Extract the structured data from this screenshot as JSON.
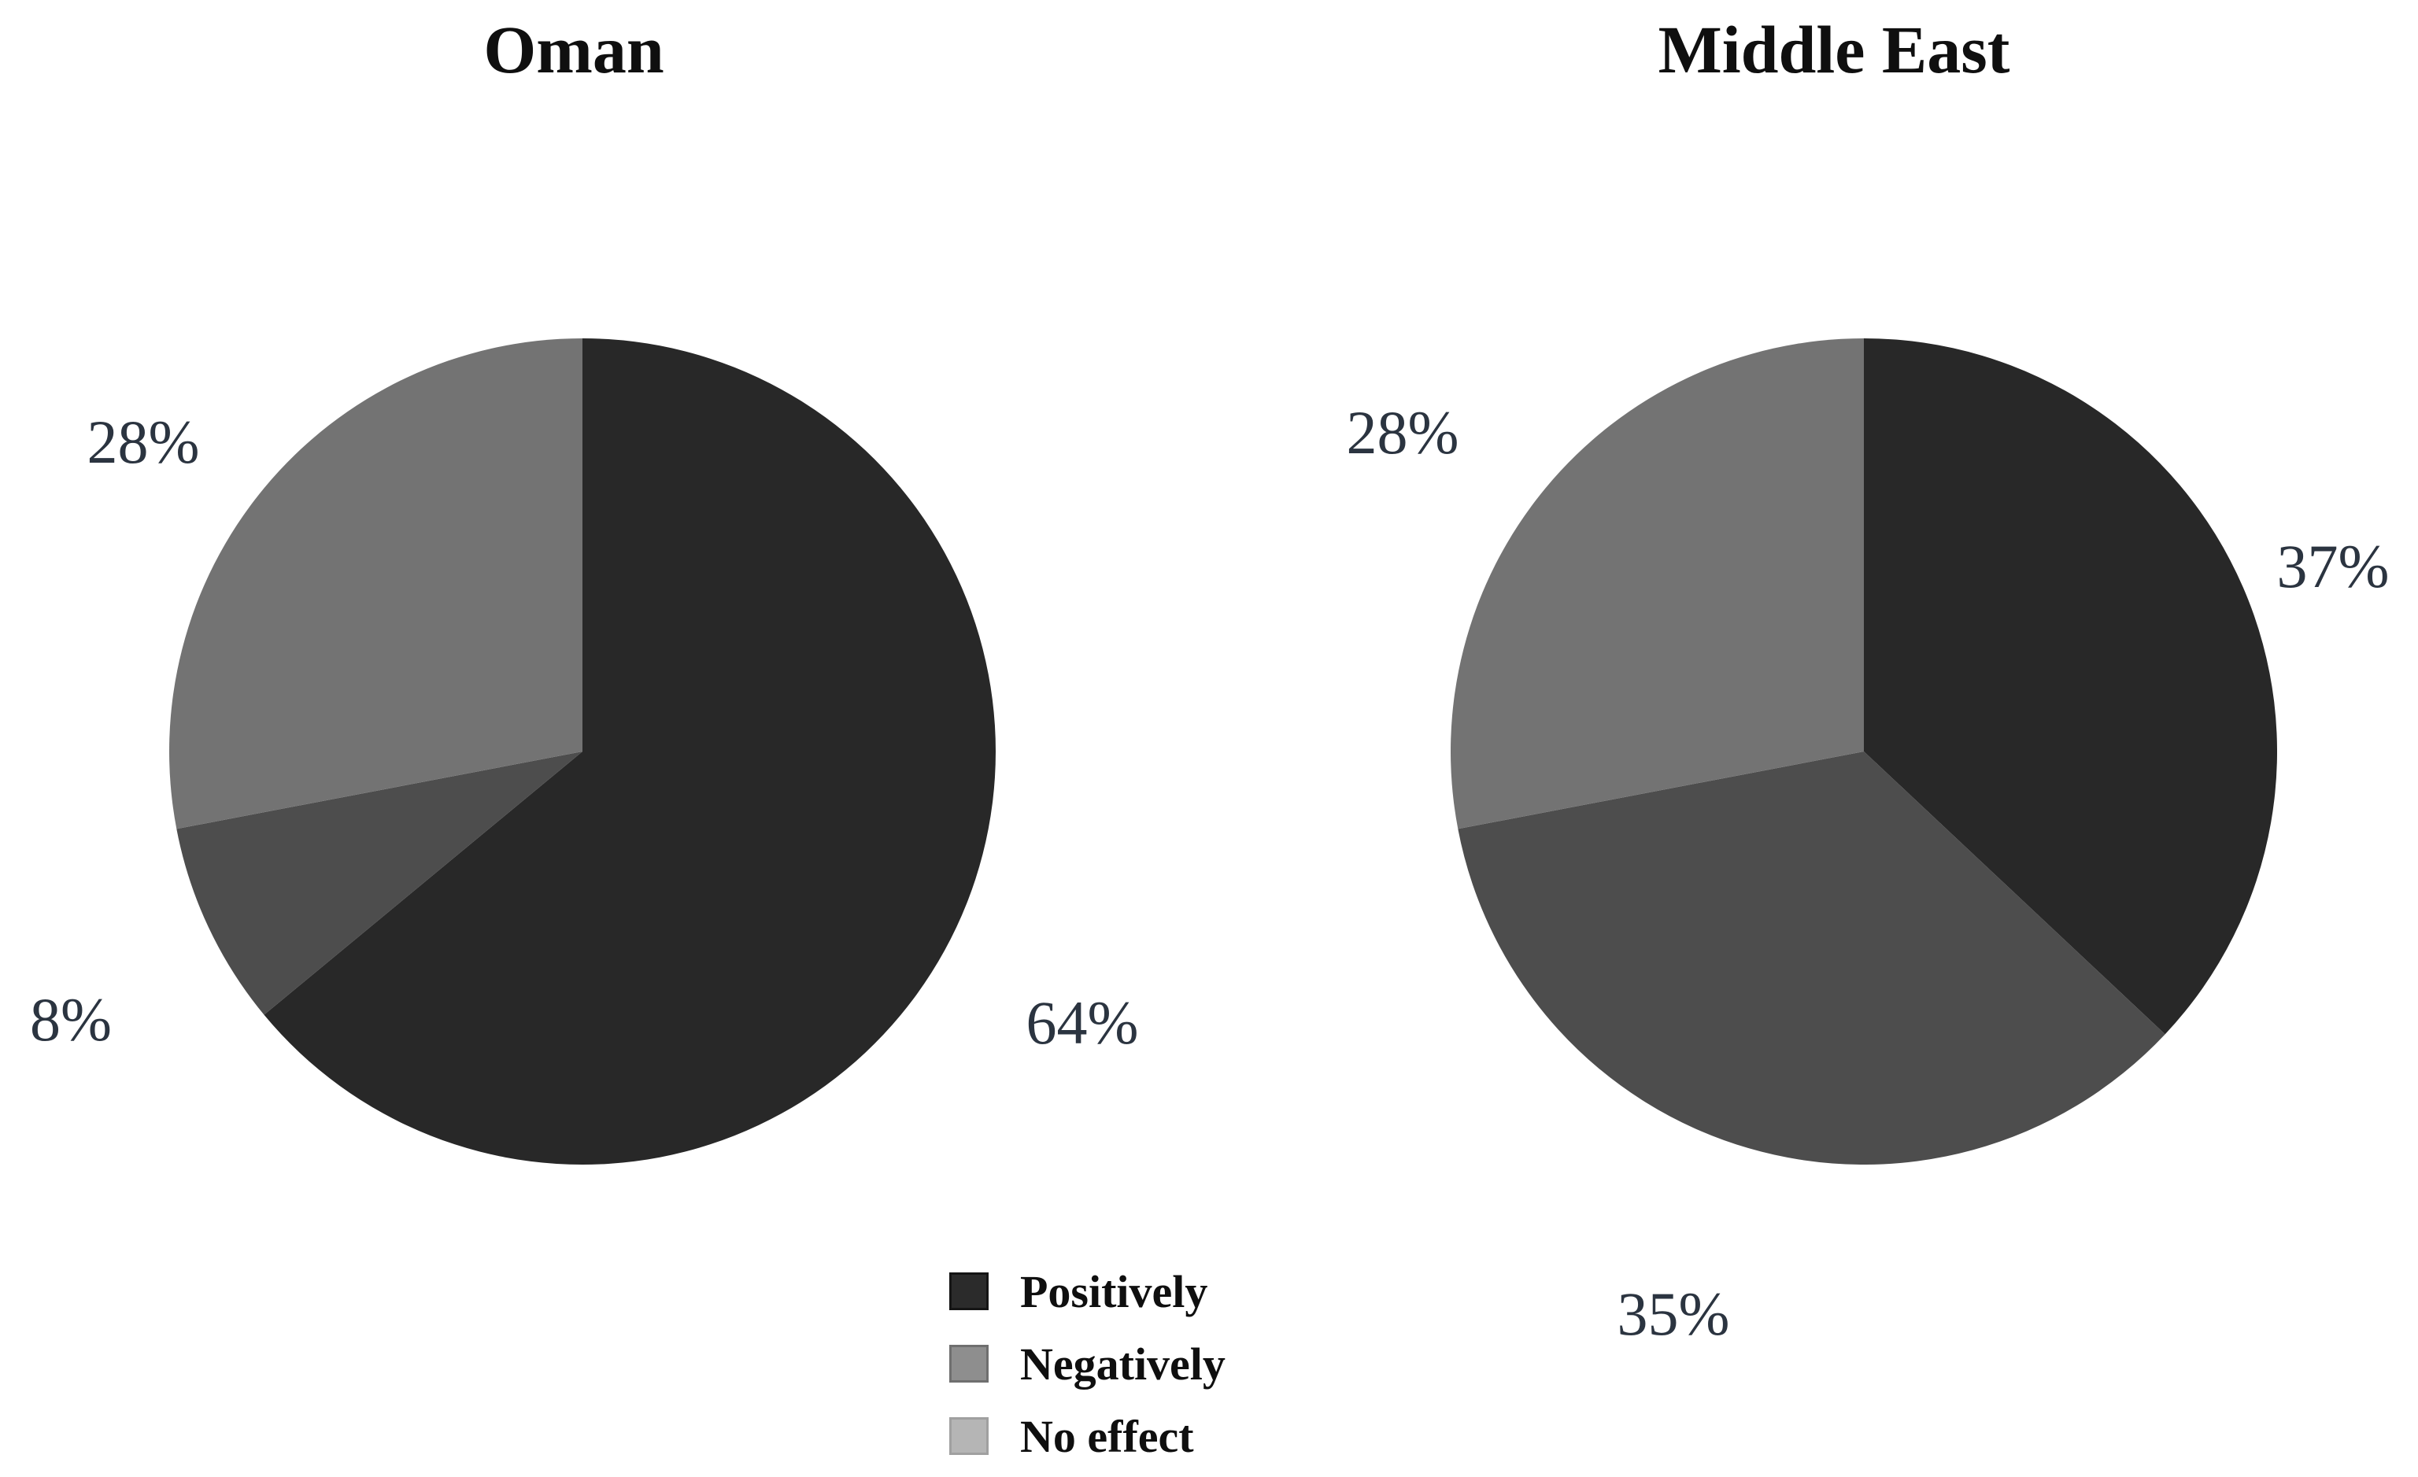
{
  "chart_data": [
    {
      "type": "pie",
      "title": "Oman",
      "labels": [
        "Positively",
        "Negatively",
        "No effect"
      ],
      "values": [
        64,
        8,
        28
      ],
      "value_labels": [
        "64%",
        "8%",
        "28%"
      ],
      "colors": [
        "#282828",
        "#4d4d4d",
        "#737373"
      ],
      "start_angle_deg": 0,
      "direction": "clockwise",
      "grid": false
    },
    {
      "type": "pie",
      "title": "Middle East",
      "labels": [
        "Positively",
        "Negatively",
        "No effect"
      ],
      "values": [
        37,
        35,
        28
      ],
      "value_labels": [
        "37%",
        "35%",
        "28%"
      ],
      "colors": [
        "#282828",
        "#4d4d4d",
        "#737373"
      ],
      "start_angle_deg": 0,
      "direction": "clockwise",
      "grid": false
    }
  ],
  "legend": {
    "position": "bottom-center",
    "items": [
      {
        "label": "Positively",
        "color": "#2b2b2b",
        "border": "#151515"
      },
      {
        "label": "Negatively",
        "color": "#8e8e8e",
        "border": "#6f6f6f"
      },
      {
        "label": "No effect",
        "color": "#b5b5b5",
        "border": "#a0a0a0"
      }
    ]
  },
  "label_text_color": "#2b3440"
}
